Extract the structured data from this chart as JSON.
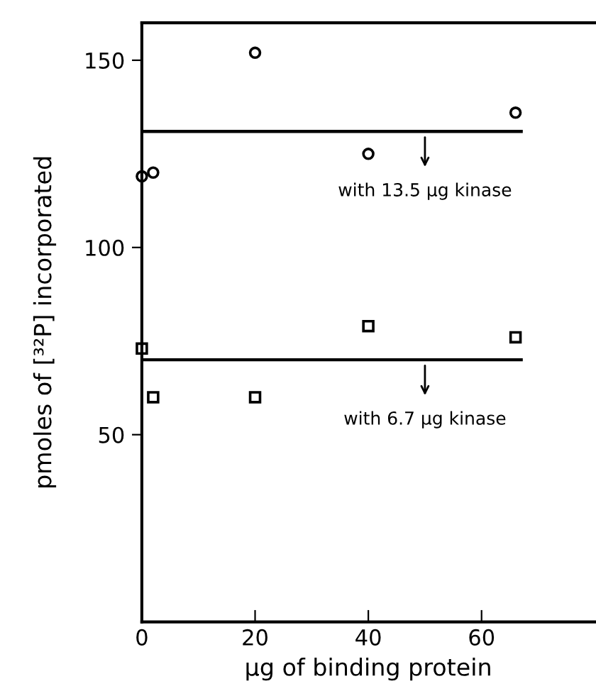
{
  "chart_data": {
    "type": "scatter",
    "xlabel": "μg of binding protein",
    "ylabel": "pmoles of [³²P] incorporated",
    "xlim": [
      0,
      80
    ],
    "xticks": [
      0,
      20,
      40,
      60
    ],
    "ylim": [
      0,
      160
    ],
    "yticks": [
      50,
      100,
      150
    ],
    "grid": false,
    "series": [
      {
        "marker": "circle",
        "color": "#000000",
        "x": [
          0,
          2,
          20,
          40,
          66
        ],
        "values": [
          119,
          120,
          152,
          125,
          136
        ]
      },
      {
        "marker": "square",
        "color": "#000000",
        "x": [
          0,
          2,
          20,
          40,
          66
        ],
        "values": [
          73,
          60,
          60,
          79,
          76
        ]
      },
      {
        "type": "line",
        "marker": "none",
        "line_style": "solid",
        "color": "#000000",
        "x": [
          0,
          67
        ],
        "values": [
          131,
          131
        ]
      },
      {
        "type": "line",
        "marker": "none",
        "line_style": "solid",
        "color": "#000000",
        "x": [
          0,
          67
        ],
        "values": [
          70,
          70
        ]
      }
    ],
    "annotations": [
      {
        "text": "with 13.5 μg kinase",
        "x": 50,
        "y": 131
      },
      {
        "text": "with 6.7 μg kinase",
        "x": 50,
        "y": 70
      }
    ]
  }
}
